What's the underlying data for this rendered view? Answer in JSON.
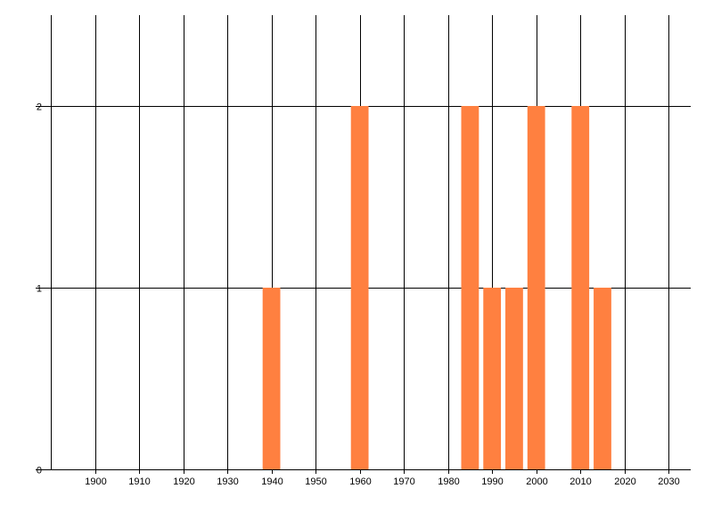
{
  "chart_data": {
    "type": "bar",
    "x": [
      1940,
      1960,
      1985,
      1990,
      1995,
      2000,
      2010,
      2015
    ],
    "values": [
      1,
      2,
      2,
      1,
      1,
      2,
      2,
      1
    ],
    "color": "#ff8040",
    "xlim": [
      1890,
      2035
    ],
    "xticks": [
      1900,
      1910,
      1920,
      1930,
      1940,
      1950,
      1960,
      1970,
      1980,
      1990,
      2000,
      2010,
      2020,
      2030
    ],
    "ylim": [
      0,
      2.5
    ],
    "yticks": [
      0,
      1,
      2
    ],
    "grid": true
  }
}
